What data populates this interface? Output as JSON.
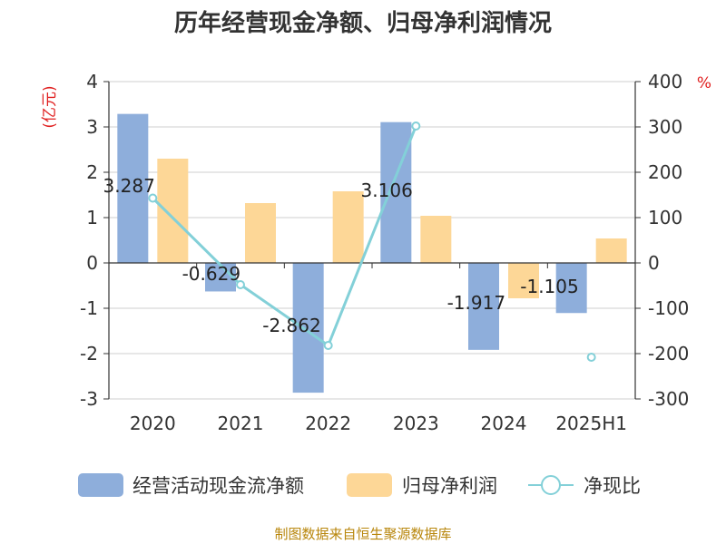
{
  "chart_data": {
    "type": "bar",
    "title": "历年经营现金净额、归母净利润情况",
    "categories": [
      "2020",
      "2021",
      "2022",
      "2023",
      "2024",
      "2025H1"
    ],
    "y_left_unit": "(亿元)",
    "y_right_unit": "%",
    "ylim_left": [
      -3,
      4
    ],
    "ylim_right": [
      -300,
      400
    ],
    "yticks_left": [
      "4",
      "3",
      "2",
      "1",
      "0",
      "-1",
      "-2",
      "-3"
    ],
    "yticks_right": [
      "400",
      "300",
      "200",
      "100",
      "0",
      "-100",
      "-200",
      "-300"
    ],
    "grid": true,
    "legend_position": "bottom",
    "series": [
      {
        "name": "经营活动现金流净额",
        "kind": "bar",
        "axis": "left",
        "color": "#8eaedb",
        "values": [
          3.287,
          -0.629,
          -2.862,
          3.106,
          -1.917,
          -1.105
        ],
        "labels": [
          "3.287",
          "-0.629",
          "-2.862",
          "3.106",
          "-1.917",
          "-1.105"
        ]
      },
      {
        "name": "归母净利润",
        "kind": "bar",
        "axis": "left",
        "color": "#fdd797",
        "values": [
          2.3,
          1.32,
          1.58,
          1.04,
          -0.78,
          0.54
        ]
      },
      {
        "name": "净现比",
        "kind": "line",
        "axis": "right",
        "color": "#83d0d8",
        "values": [
          143,
          -48,
          -182,
          302,
          null,
          -208
        ]
      }
    ],
    "source": "制图数据来自恒生聚源数据库"
  }
}
